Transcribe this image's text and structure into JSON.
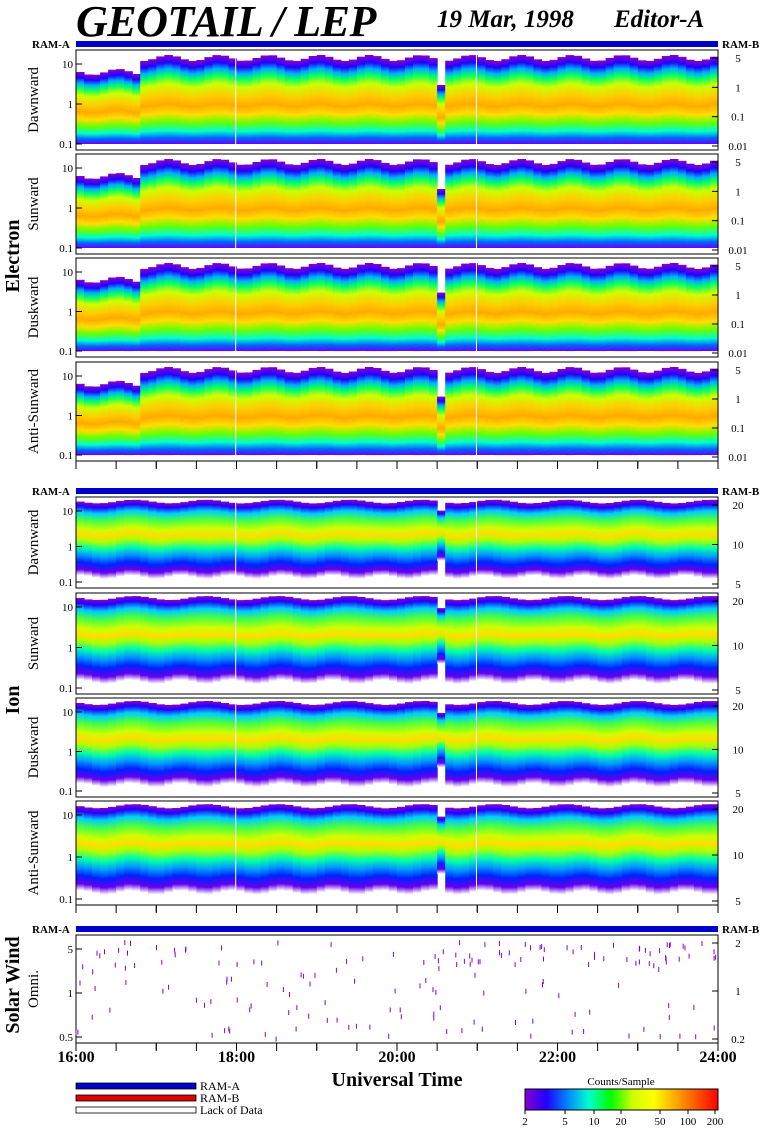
{
  "header": {
    "title": "GEOTAIL / LEP",
    "date": "19 Mar, 1998",
    "editor": "Editor-A"
  },
  "colors": {
    "ram_a": "#0000cc",
    "ram_b": "#dd0000",
    "lack_of_data": "#ffffff",
    "spectrogram_scale": [
      "#8800cc",
      "#2200ff",
      "#0088ff",
      "#00ffcc",
      "#00ff00",
      "#ccff00",
      "#ffff00",
      "#ffaa00",
      "#ff5500",
      "#ff0000"
    ]
  },
  "chart_data": {
    "type": "heatmap",
    "xlabel": "Universal Time",
    "x_ticks": [
      "16:00",
      "18:00",
      "20:00",
      "22:00",
      "24:00"
    ],
    "xlim_hours": [
      16,
      24
    ],
    "groups": [
      {
        "name": "Electron",
        "ram_a_label": "RAM-A",
        "ram_b_label": "RAM-B",
        "right_axis_ticks": [
          "5",
          "1",
          "0.1",
          "0.01"
        ],
        "panels": [
          {
            "name": "Dawnward",
            "left_ticks": [
              "10",
              "1",
              "0.1"
            ]
          },
          {
            "name": "Sunward",
            "left_ticks": [
              "10",
              "1",
              "0.1"
            ]
          },
          {
            "name": "Duskward",
            "left_ticks": [
              "10",
              "1",
              "0.1"
            ]
          },
          {
            "name": "Anti-Sunward",
            "left_ticks": [
              "10",
              "1",
              "0.1"
            ]
          }
        ]
      },
      {
        "name": "Ion",
        "ram_a_label": "RAM-A",
        "ram_b_label": "RAM-B",
        "right_axis_ticks": [
          "20",
          "10",
          "5"
        ],
        "panels": [
          {
            "name": "Dawnward",
            "left_ticks": [
              "10",
              "1",
              "0.1"
            ]
          },
          {
            "name": "Sunward",
            "left_ticks": [
              "10",
              "1",
              "0.1"
            ]
          },
          {
            "name": "Duskward",
            "left_ticks": [
              "10",
              "1",
              "0.1"
            ]
          },
          {
            "name": "Anti-Sunward",
            "left_ticks": [
              "10",
              "1",
              "0.1"
            ]
          }
        ]
      },
      {
        "name": "Solar Wind",
        "ram_a_label": "RAM-A",
        "ram_b_label": "RAM-B",
        "right_axis_ticks": [
          "2",
          "1",
          "0.2"
        ],
        "panels": [
          {
            "name": "Omni.",
            "left_ticks": [
              "5",
              "1",
              "0.5"
            ]
          }
        ]
      }
    ],
    "legend": {
      "items": [
        "RAM-A",
        "RAM-B",
        "Lack of Data"
      ]
    },
    "colorbar": {
      "title": "Counts/Sample",
      "ticks": [
        "2",
        "5",
        "10",
        "20",
        "50",
        "100",
        "200"
      ]
    }
  }
}
